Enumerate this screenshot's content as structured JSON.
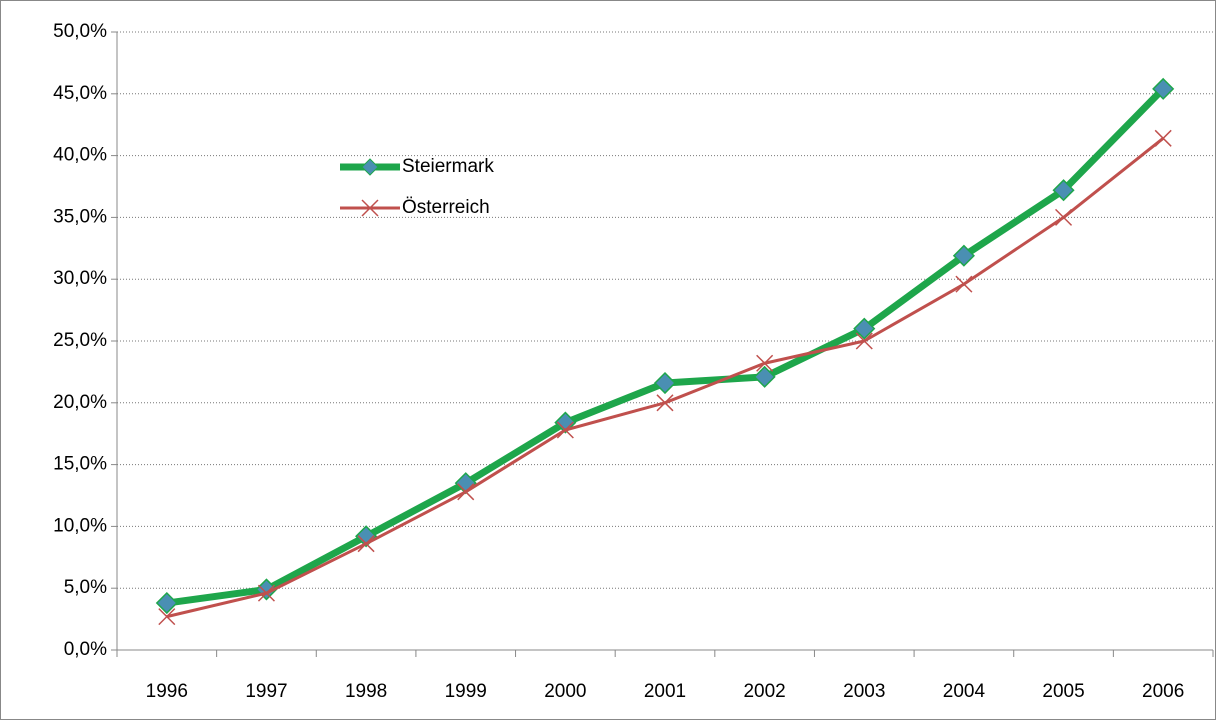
{
  "chart_data": {
    "type": "line",
    "categories": [
      "1996",
      "1997",
      "1998",
      "1999",
      "2000",
      "2001",
      "2002",
      "2003",
      "2004",
      "2005",
      "2006"
    ],
    "series": [
      {
        "name": "Steiermark",
        "color": "#1ea64b",
        "marker_color": "#4a8fb3",
        "values": [
          3.8,
          4.9,
          9.2,
          13.5,
          18.4,
          21.6,
          22.1,
          26.0,
          31.9,
          37.2,
          45.4
        ]
      },
      {
        "name": "Österreich",
        "color": "#c0504d",
        "values": [
          2.7,
          4.6,
          8.6,
          12.8,
          17.8,
          20.0,
          23.2,
          25.0,
          29.6,
          35.0,
          41.4
        ]
      }
    ],
    "ylim": [
      0,
      50
    ],
    "yticks": [
      {
        "value": 0,
        "label": "0,0%"
      },
      {
        "value": 5,
        "label": "5,0%"
      },
      {
        "value": 10,
        "label": "10,0%"
      },
      {
        "value": 15,
        "label": "15,0%"
      },
      {
        "value": 20,
        "label": "20,0%"
      },
      {
        "value": 25,
        "label": "25,0%"
      },
      {
        "value": 30,
        "label": "30,0%"
      },
      {
        "value": 35,
        "label": "35,0%"
      },
      {
        "value": 40,
        "label": "40,0%"
      },
      {
        "value": 45,
        "label": "45,0%"
      },
      {
        "value": 50,
        "label": "50,0%"
      }
    ],
    "grid": true
  }
}
